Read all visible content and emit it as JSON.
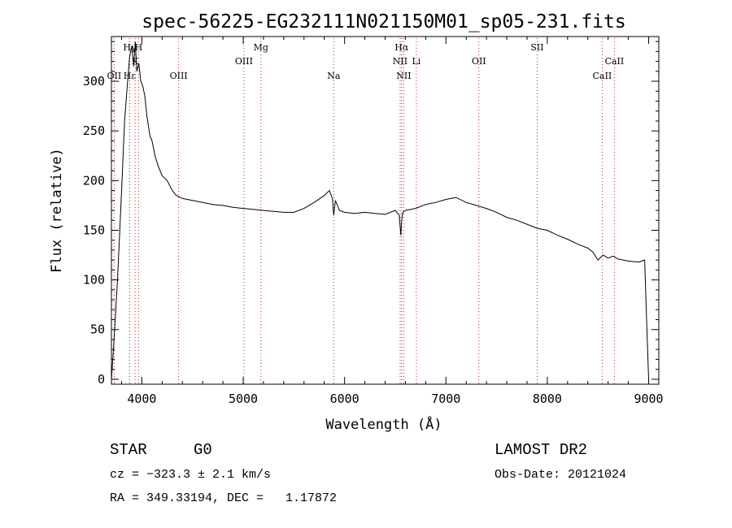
{
  "chart_data": {
    "type": "line",
    "title": "spec-56225-EG232111N021150M01_sp05-231.fits",
    "xlabel": "Wavelength (Å)",
    "ylabel": "Flux (relative)",
    "xlim": [
      3700,
      9100
    ],
    "ylim": [
      -5,
      345
    ],
    "xticks": [
      4000,
      5000,
      6000,
      7000,
      8000,
      9000
    ],
    "yticks": [
      0,
      50,
      100,
      150,
      200,
      250,
      300
    ],
    "series": [
      {
        "x": [
          3700,
          3720,
          3760,
          3800,
          3830,
          3860,
          3880,
          3900,
          3920,
          3935,
          3950,
          3970,
          3990,
          4010,
          4030,
          4050,
          4080,
          4100,
          4130,
          4160,
          4200,
          4250,
          4300,
          4340,
          4400,
          4500,
          4600,
          4700,
          4800,
          4900,
          5000,
          5100,
          5200,
          5300,
          5400,
          5500,
          5600,
          5700,
          5800,
          5850,
          5880,
          5893,
          5910,
          5950,
          6000,
          6100,
          6200,
          6300,
          6400,
          6500,
          6540,
          6555,
          6563,
          6575,
          6600,
          6700,
          6800,
          6900,
          7000,
          7100,
          7200,
          7300,
          7400,
          7500,
          7600,
          7700,
          7800,
          7900,
          8000,
          8100,
          8200,
          8300,
          8400,
          8450,
          8500,
          8550,
          8600,
          8650,
          8700,
          8800,
          8900,
          8960,
          8980,
          9000
        ],
        "y": [
          0,
          30,
          100,
          190,
          260,
          300,
          325,
          335,
          315,
          340,
          310,
          318,
          300,
          295,
          285,
          265,
          245,
          240,
          225,
          215,
          205,
          200,
          190,
          185,
          182,
          180,
          178,
          176,
          175,
          173,
          172,
          171,
          170,
          169,
          168,
          168,
          172,
          178,
          185,
          190,
          182,
          165,
          180,
          170,
          168,
          167,
          168,
          167,
          166,
          170,
          165,
          145,
          160,
          168,
          170,
          172,
          176,
          178,
          181,
          183,
          178,
          175,
          172,
          168,
          163,
          160,
          156,
          152,
          150,
          145,
          141,
          136,
          132,
          128,
          120,
          125,
          122,
          124,
          121,
          119,
          118,
          120,
          60,
          0
        ]
      }
    ],
    "lines": [
      {
        "label": "Hγ",
        "x": 3880,
        "row": 0
      },
      {
        "label": "H",
        "x": 3968,
        "row": 0
      },
      {
        "label": "K",
        "x": 3934,
        "row": 1
      },
      {
        "label": "OII",
        "x": 3727,
        "row": 2
      },
      {
        "label": "Hε",
        "x": 3880,
        "row": 2
      },
      {
        "label": "Mg",
        "x": 5175,
        "row": 0
      },
      {
        "label": "OIII",
        "x": 4363,
        "row": 2
      },
      {
        "label": "OIII",
        "x": 5007,
        "row": 1
      },
      {
        "label": "Na",
        "x": 5893,
        "row": 2
      },
      {
        "label": "Hα",
        "x": 6563,
        "row": 0
      },
      {
        "label": "NII",
        "x": 6548,
        "row": 1
      },
      {
        "label": "Li",
        "x": 6708,
        "row": 1
      },
      {
        "label": "NII",
        "x": 6584,
        "row": 2
      },
      {
        "label": "OII",
        "x": 7325,
        "row": 1
      },
      {
        "label": "SII",
        "x": 7900,
        "row": 0
      },
      {
        "label": "CaII",
        "x": 8662,
        "row": 1
      },
      {
        "label": "CaII",
        "x": 8542,
        "row": 2
      }
    ]
  },
  "info": {
    "class": "STAR",
    "subclass": "G0",
    "survey": "LAMOST DR2",
    "cz": "cz = −323.3 ± 2.1 km/s",
    "obs_date": "Obs-Date: 20121024",
    "radec": "RA = 349.33194, DEC =   1.17872"
  }
}
